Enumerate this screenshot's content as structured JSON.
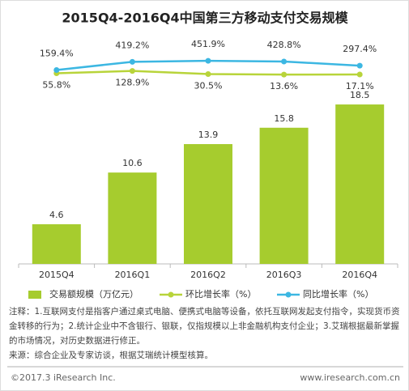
{
  "chart_data": {
    "type": "bar",
    "title": "2015Q4-2016Q4中国第三方移动支付交易规模",
    "categories": [
      "2015Q4",
      "2016Q1",
      "2016Q2",
      "2016Q3",
      "2016Q4"
    ],
    "ylim": [
      0,
      26.3
    ],
    "y2lim": [
      -6000,
      1200
    ],
    "series": [
      {
        "name": "交易额规模（万亿元）",
        "type": "bar",
        "color": "#a6cc2e",
        "values": [
          4.6,
          10.6,
          13.9,
          15.8,
          18.5
        ]
      },
      {
        "name": "环比增长率（%）",
        "type": "line",
        "axis": "y2",
        "color": "#b8d43a",
        "values": [
          55.8,
          128.9,
          30.5,
          13.6,
          17.1
        ],
        "value_labels": [
          "55.8%",
          "128.9%",
          "30.5%",
          "13.6%",
          "17.1%"
        ]
      },
      {
        "name": "同比增长率（%）",
        "type": "line",
        "axis": "y2",
        "color": "#3cb7e2",
        "values": [
          159.4,
          419.2,
          451.9,
          428.8,
          297.4
        ],
        "value_labels": [
          "159.4%",
          "419.2%",
          "451.9%",
          "428.8%",
          "297.4%"
        ]
      }
    ]
  },
  "notes": "注释：1.互联网支付是指客户通过桌式电脑、便携式电脑等设备，依托互联网发起支付指令，实现货币资金转移的行为；2.统计企业中不含银行、银联，仅指规模以上非金融机构支付企业；3.艾瑞根据最新掌握的市场情况，对历史数据进行修正。",
  "source": "来源：综合企业及专家访谈，根据艾瑞统计模型核算。",
  "copyright": "©2017.3 iResearch Inc.",
  "website": "www.iresearch.com.cn"
}
